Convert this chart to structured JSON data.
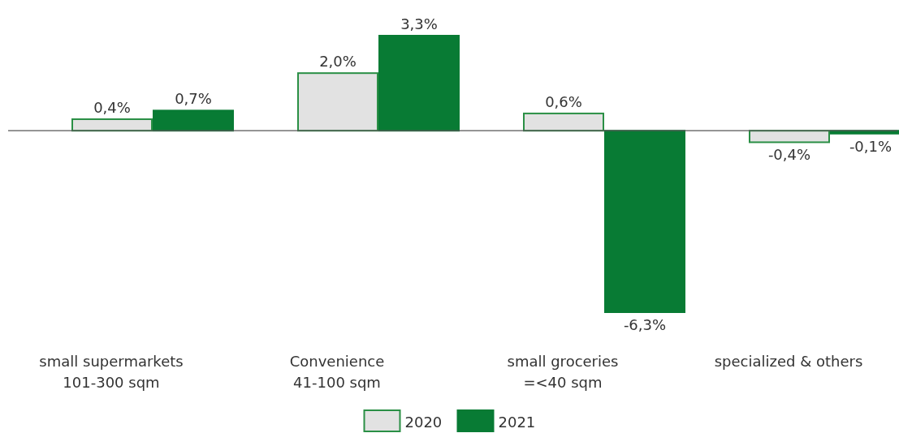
{
  "chart_data": {
    "type": "bar",
    "categories": [
      "small supermarkets\n101-300 sqm",
      "Convenience\n41-100 sqm",
      "small groceries\n=<40 sqm",
      "specialized & others"
    ],
    "series": [
      {
        "name": "2020",
        "color": "#e2e2e2",
        "values": [
          0.4,
          2.0,
          0.6,
          -0.4
        ],
        "value_labels": [
          "0,4%",
          "2,0%",
          "0,6%",
          "-0,4%"
        ]
      },
      {
        "name": "2021",
        "color": "#087b34",
        "values": [
          0.7,
          3.3,
          -6.3,
          -0.1
        ],
        "value_labels": [
          "0,7%",
          "3,3%",
          "-6,3%",
          "-0,1%"
        ]
      }
    ],
    "legend": "bottom"
  }
}
